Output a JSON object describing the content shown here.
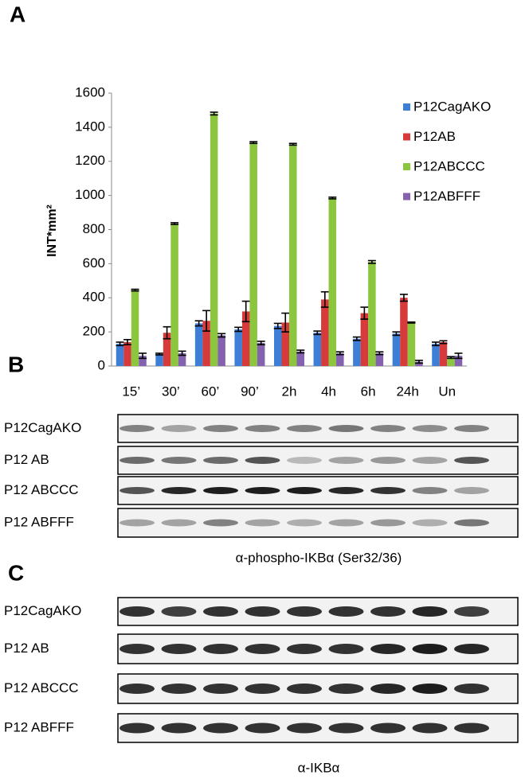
{
  "chart_data": {
    "type": "bar",
    "y_label": "INT*mm²",
    "categories": [
      "15’",
      "30’",
      "60’",
      "90’",
      "2h",
      "4h",
      "6h",
      "24h",
      "Un"
    ],
    "series": [
      {
        "name": "P12CagAKO",
        "color": "#3d7fd6",
        "values": [
          130,
          70,
          250,
          215,
          235,
          195,
          160,
          190,
          130
        ],
        "errors": [
          10,
          5,
          15,
          12,
          15,
          10,
          10,
          10,
          10
        ]
      },
      {
        "name": "P12AB",
        "color": "#d63a3a",
        "values": [
          140,
          195,
          265,
          320,
          255,
          390,
          310,
          400,
          140
        ],
        "errors": [
          15,
          35,
          60,
          60,
          55,
          45,
          35,
          20,
          8
        ]
      },
      {
        "name": "P12ABCCC",
        "color": "#8cc63f",
        "values": [
          445,
          835,
          1480,
          1310,
          1300,
          985,
          610,
          255,
          50
        ],
        "errors": [
          5,
          5,
          8,
          5,
          5,
          5,
          8,
          3,
          5
        ]
      },
      {
        "name": "P12ABFFF",
        "color": "#8462b0",
        "values": [
          60,
          75,
          180,
          135,
          85,
          75,
          75,
          25,
          60
        ],
        "errors": [
          15,
          12,
          10,
          10,
          8,
          8,
          8,
          8,
          15
        ]
      }
    ],
    "ylim": [
      0,
      1600
    ],
    "yticks": [
      0,
      200,
      400,
      600,
      800,
      1000,
      1200,
      1400,
      1600
    ],
    "legend": "top-right"
  },
  "panel_labels": [
    "A",
    "B",
    "C"
  ],
  "blots": [
    {
      "rows": [
        "P12CagAKO",
        "P12 AB",
        "P12 ABCCC",
        "P12 ABFFF"
      ],
      "caption": "α-phospho-IKBα (Ser32/36)"
    },
    {
      "rows": [
        "P12CagAKO",
        "P12 AB",
        "P12 ABCCC",
        "P12 ABFFF"
      ],
      "caption": "α-IKBα"
    }
  ]
}
